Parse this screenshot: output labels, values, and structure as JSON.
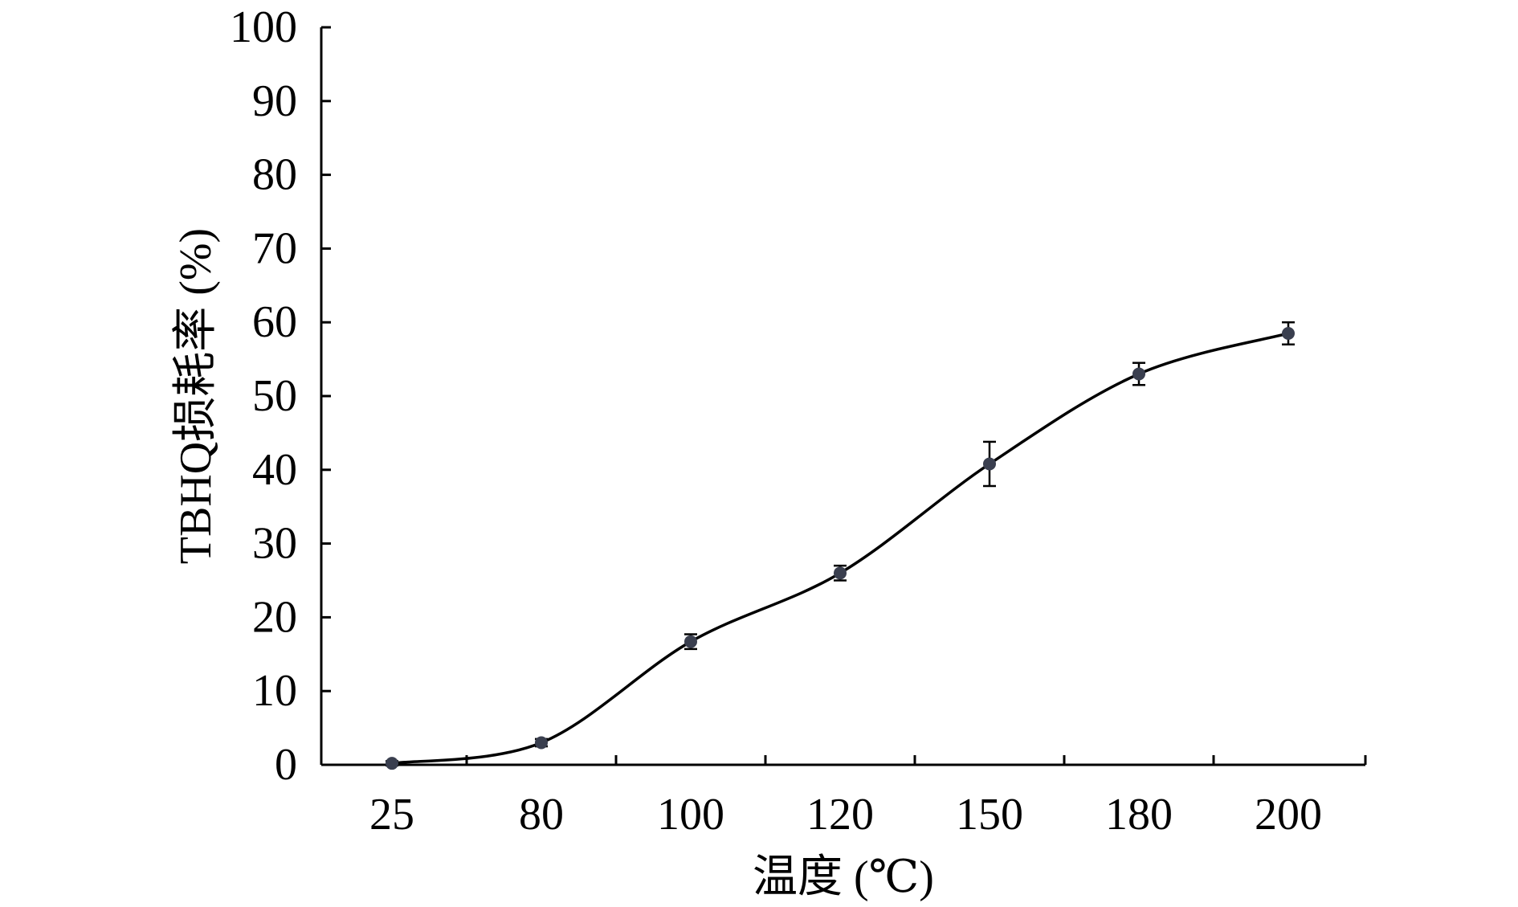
{
  "chart_data": {
    "type": "line",
    "title": "",
    "xlabel": "温度 (℃)",
    "ylabel": "TBHQ损耗率 (%)",
    "categories": [
      "25",
      "80",
      "100",
      "120",
      "150",
      "180",
      "200"
    ],
    "ylim": [
      0,
      100
    ],
    "yticks": [
      0,
      10,
      20,
      30,
      40,
      50,
      60,
      70,
      80,
      90,
      100
    ],
    "grid": false,
    "legend": "none",
    "series": [
      {
        "values": [
          0.2,
          3.0,
          16.7,
          26.0,
          40.8,
          53.0,
          58.5
        ],
        "errors": [
          0.3,
          0.5,
          1.0,
          1.0,
          3.0,
          1.5,
          1.5
        ],
        "color": "#3a3f4f",
        "line_color": "#000000",
        "smooth": true
      }
    ]
  }
}
